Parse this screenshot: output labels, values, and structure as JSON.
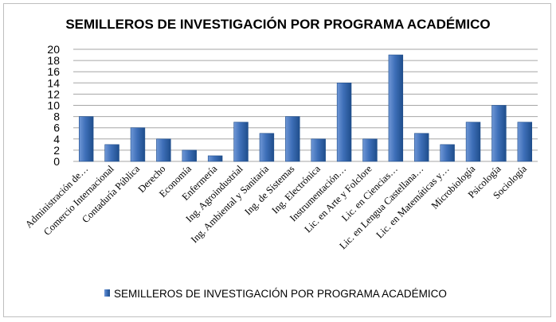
{
  "chart_data": {
    "type": "bar",
    "title": "SEMILLEROS DE INVESTIGACIÓN POR PROGRAMA ACADÉMICO",
    "categories": [
      "Administración de…",
      "Comercio Internacional",
      "Contaduría Pública",
      "Derecho",
      "Economía",
      "Enfermería",
      "Ing. Agroindustrial",
      "Ing. Ambiental y Sanitaria",
      "Ing. de Sistemas",
      "Ing. Electrónica",
      "Instrumentación…",
      "Lic. en Arte y Folclore",
      "Lic. en Ciencias…",
      "Lic. en Lengua Castellana…",
      "Lic. en Matemáticas y…",
      "Microbiología",
      "Psicología",
      "Sociología"
    ],
    "series": [
      {
        "name": "SEMILLEROS DE INVESTIGACIÓN POR PROGRAMA ACADÉMICO",
        "values": [
          8,
          3,
          6,
          4,
          2,
          1,
          7,
          5,
          8,
          4,
          14,
          4,
          19,
          5,
          3,
          7,
          10,
          7
        ]
      }
    ],
    "ylim": [
      0,
      20
    ],
    "yticks": [
      0,
      2,
      4,
      6,
      8,
      10,
      12,
      14,
      16,
      18,
      20
    ],
    "xlabel": "",
    "ylabel": "",
    "grid": true,
    "legend_position": "bottom",
    "colors": {
      "bar_light": "#6f97d6",
      "bar_mid": "#3e6fb8",
      "bar_dark": "#1f4e8c",
      "grid": "#a6a6a6"
    }
  }
}
